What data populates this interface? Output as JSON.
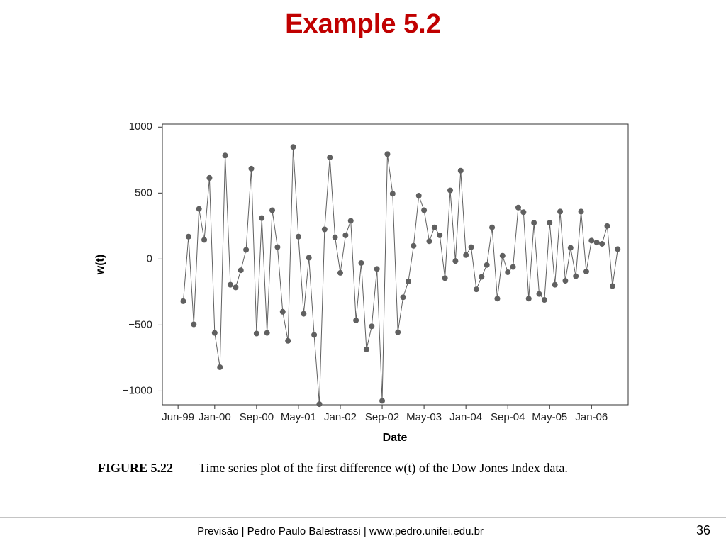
{
  "slide_title": "Example 5.2",
  "chart_data": {
    "type": "line",
    "y_label": "w(t)",
    "x_label": "Date",
    "color": "#606060",
    "x": [
      "1999-07",
      "1999-08",
      "1999-09",
      "1999-10",
      "1999-11",
      "1999-12",
      "2000-01",
      "2000-02",
      "2000-03",
      "2000-04",
      "2000-05",
      "2000-06",
      "2000-07",
      "2000-08",
      "2000-09",
      "2000-10",
      "2000-11",
      "2000-12",
      "2001-01",
      "2001-02",
      "2001-03",
      "2001-04",
      "2001-05",
      "2001-06",
      "2001-07",
      "2001-08",
      "2001-09",
      "2001-10",
      "2001-11",
      "2001-12",
      "2002-01",
      "2002-02",
      "2002-03",
      "2002-04",
      "2002-05",
      "2002-06",
      "2002-07",
      "2002-08",
      "2002-09",
      "2002-10",
      "2002-11",
      "2002-12",
      "2003-01",
      "2003-02",
      "2003-03",
      "2003-04",
      "2003-05",
      "2003-06",
      "2003-07",
      "2003-08",
      "2003-09",
      "2003-10",
      "2003-11",
      "2003-12",
      "2004-01",
      "2004-02",
      "2004-03",
      "2004-04",
      "2004-05",
      "2004-06",
      "2004-07",
      "2004-08",
      "2004-09",
      "2004-10",
      "2004-11",
      "2004-12",
      "2005-01",
      "2005-02",
      "2005-03",
      "2005-04",
      "2005-05",
      "2005-06",
      "2005-07",
      "2005-08",
      "2005-09",
      "2005-10",
      "2005-11",
      "2005-12",
      "2006-01",
      "2006-02",
      "2006-03",
      "2006-04",
      "2006-05",
      "2006-06"
    ],
    "values": [
      -320,
      170,
      -495,
      380,
      145,
      615,
      -560,
      -820,
      785,
      -195,
      -215,
      -85,
      70,
      685,
      -565,
      310,
      -560,
      370,
      90,
      -400,
      -620,
      850,
      170,
      -415,
      10,
      -575,
      -1100,
      225,
      770,
      165,
      -105,
      180,
      290,
      -465,
      -30,
      -685,
      -510,
      -75,
      -1075,
      795,
      495,
      -555,
      -290,
      -170,
      100,
      480,
      370,
      135,
      240,
      180,
      -145,
      520,
      -15,
      670,
      30,
      90,
      -230,
      -135,
      -45,
      240,
      -300,
      25,
      -100,
      -60,
      390,
      355,
      -300,
      275,
      -265,
      -310,
      275,
      -195,
      360,
      -165,
      85,
      -130,
      360,
      -95,
      140,
      125,
      115,
      250,
      -205,
      75
    ],
    "xlim": [
      "1999-03",
      "2006-08"
    ],
    "xticks": [
      {
        "value": "1999-06",
        "label": "Jun-99"
      },
      {
        "value": "2000-01",
        "label": "Jan-00"
      },
      {
        "value": "2000-09",
        "label": "Sep-00"
      },
      {
        "value": "2001-05",
        "label": "May-01"
      },
      {
        "value": "2002-01",
        "label": "Jan-02"
      },
      {
        "value": "2002-09",
        "label": "Sep-02"
      },
      {
        "value": "2003-05",
        "label": "May-03"
      },
      {
        "value": "2004-01",
        "label": "Jan-04"
      },
      {
        "value": "2004-09",
        "label": "Sep-04"
      },
      {
        "value": "2005-05",
        "label": "May-05"
      },
      {
        "value": "2006-01",
        "label": "Jan-06"
      }
    ],
    "ylim": [
      -1105,
      1023
    ],
    "yticks": [
      {
        "value": -1000,
        "label": "−1000"
      },
      {
        "value": -500,
        "label": "−500"
      },
      0,
      500,
      1000
    ]
  },
  "caption": {
    "label": "FIGURE 5.22",
    "text": "Time series plot of the first difference w(t) of the Dow Jones Index data."
  },
  "footer": "Previsão | Pedro Paulo Balestrassi | www.pedro.unifei.edu.br",
  "page_number": "36"
}
